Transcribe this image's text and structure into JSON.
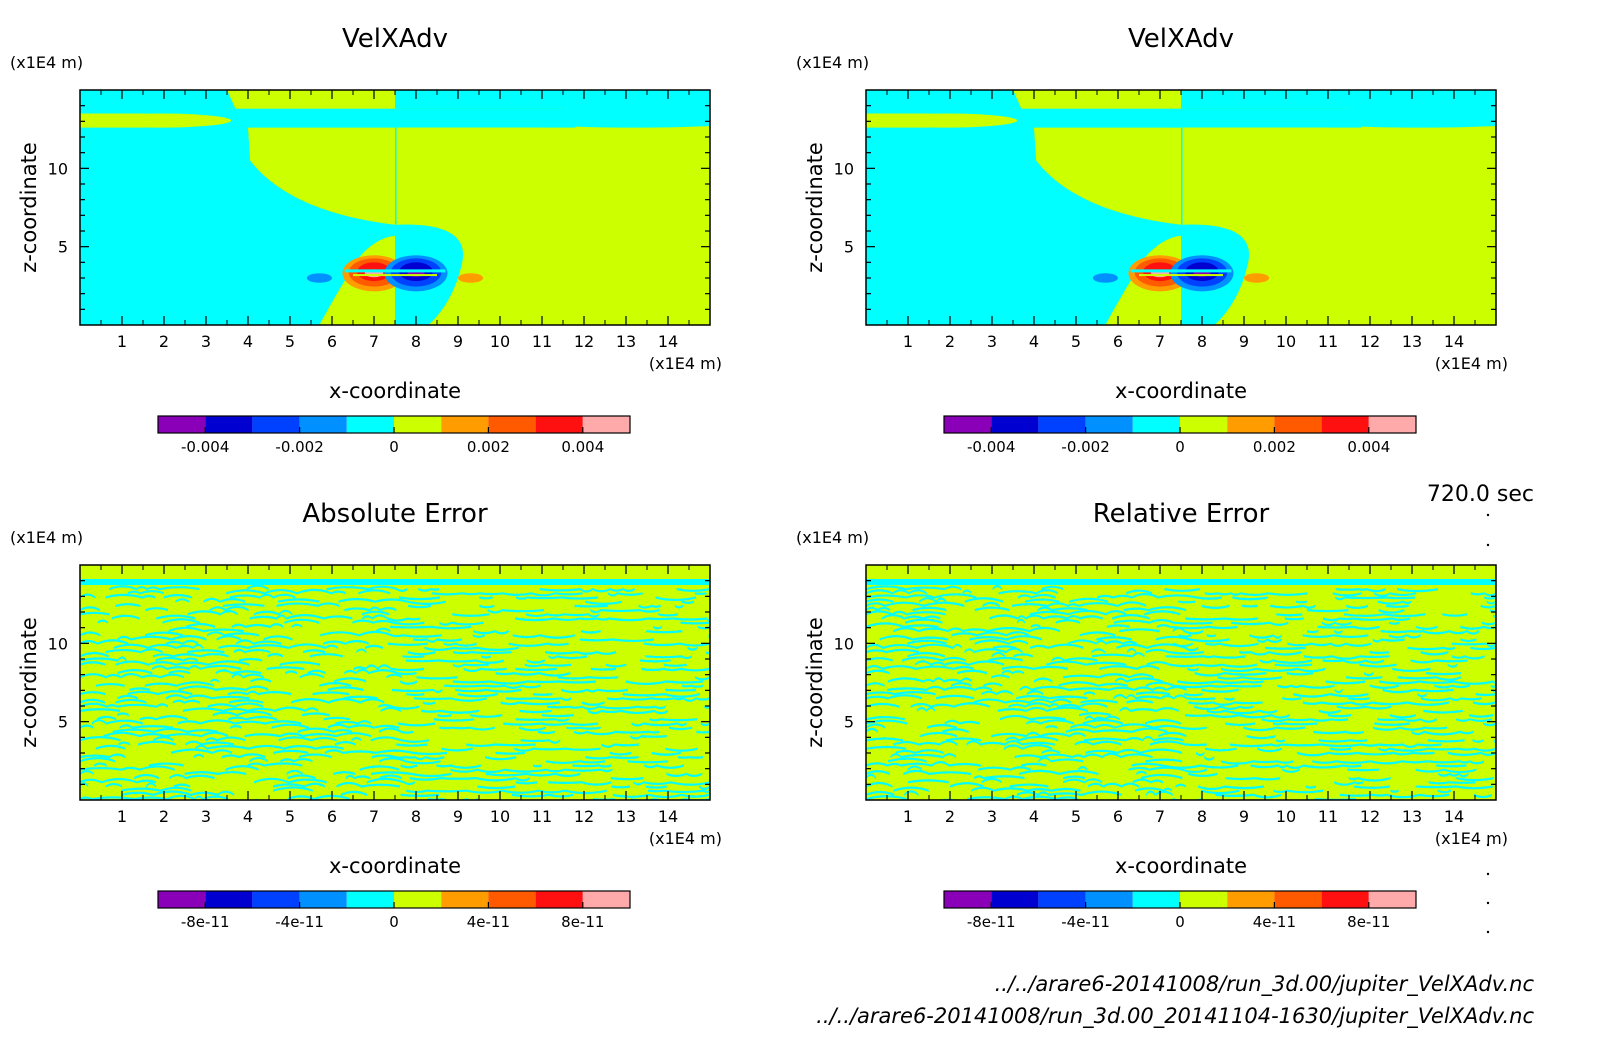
{
  "colors": {
    "fill_cyan": "#00ffff",
    "fill_yellow": "#ccff00",
    "axis": "#000000"
  },
  "colorbar_colors": [
    "#8a00b8",
    "#0000d0",
    "#0040ff",
    "#0090ff",
    "#00ffff",
    "#ccff00",
    "#ff9c00",
    "#ff5a00",
    "#ff1010",
    "#ffaaaa"
  ],
  "time_label": "720.0 sec",
  "footer": {
    "line1": "../../arare6-20141008/run_3d.00/jupiter_VelXAdv.nc",
    "line2": "../../arare6-20141008/run_3d.00_20141104-1630/jupiter_VelXAdv.nc"
  },
  "chart_data": [
    {
      "type": "heatmap",
      "title": "VelXAdv",
      "xlabel": "x-coordinate",
      "ylabel": "z-coordinate",
      "x_unit": "(x1E4 m)",
      "y_unit": "(x1E4 m)",
      "xlim": [
        0,
        15
      ],
      "ylim": [
        0,
        15
      ],
      "x_ticks": [
        "1",
        "2",
        "3",
        "4",
        "5",
        "6",
        "7",
        "8",
        "9",
        "10",
        "11",
        "12",
        "13",
        "14"
      ],
      "y_ticks": [
        "5",
        "10"
      ],
      "pattern": "field",
      "colorbar": {
        "range": [
          -0.005,
          0.005
        ],
        "tick_values": [
          -0.004,
          -0.002,
          0,
          0.002,
          0.004
        ],
        "tick_labels": [
          "-0.004",
          "-0.002",
          "0",
          "0.002",
          "0.004"
        ]
      }
    },
    {
      "type": "heatmap",
      "title": "VelXAdv",
      "xlabel": "x-coordinate",
      "ylabel": "z-coordinate",
      "x_unit": "(x1E4 m)",
      "y_unit": "(x1E4 m)",
      "xlim": [
        0,
        15
      ],
      "ylim": [
        0,
        15
      ],
      "x_ticks": [
        "1",
        "2",
        "3",
        "4",
        "5",
        "6",
        "7",
        "8",
        "9",
        "10",
        "11",
        "12",
        "13",
        "14"
      ],
      "y_ticks": [
        "5",
        "10"
      ],
      "pattern": "field",
      "colorbar": {
        "range": [
          -0.005,
          0.005
        ],
        "tick_values": [
          -0.004,
          -0.002,
          0,
          0.002,
          0.004
        ],
        "tick_labels": [
          "-0.004",
          "-0.002",
          "0",
          "0.002",
          "0.004"
        ]
      }
    },
    {
      "type": "heatmap",
      "title": "Absolute Error",
      "xlabel": "x-coordinate",
      "ylabel": "z-coordinate",
      "x_unit": "(x1E4 m)",
      "y_unit": "(x1E4 m)",
      "xlim": [
        0,
        15
      ],
      "ylim": [
        0,
        15
      ],
      "x_ticks": [
        "1",
        "2",
        "3",
        "4",
        "5",
        "6",
        "7",
        "8",
        "9",
        "10",
        "11",
        "12",
        "13",
        "14"
      ],
      "y_ticks": [
        "5",
        "10"
      ],
      "pattern": "noise",
      "colorbar": {
        "range": [
          -1e-10,
          1e-10
        ],
        "tick_values": [
          -8e-11,
          -4e-11,
          0,
          4e-11,
          8e-11
        ],
        "tick_labels": [
          "-8e-11",
          "-4e-11",
          "0",
          "4e-11",
          "8e-11"
        ]
      }
    },
    {
      "type": "heatmap",
      "title": "Relative Error",
      "xlabel": "x-coordinate",
      "ylabel": "z-coordinate",
      "x_unit": "(x1E4 m)",
      "y_unit": "(x1E4 m)",
      "xlim": [
        0,
        15
      ],
      "ylim": [
        0,
        15
      ],
      "x_ticks": [
        "1",
        "2",
        "3",
        "4",
        "5",
        "6",
        "7",
        "8",
        "9",
        "10",
        "11",
        "12",
        "13",
        "14"
      ],
      "y_ticks": [
        "5",
        "10"
      ],
      "pattern": "noise",
      "colorbar": {
        "range": [
          -1e-10,
          1e-10
        ],
        "tick_values": [
          -8e-11,
          -4e-11,
          0,
          4e-11,
          8e-11
        ],
        "tick_labels": [
          "-8e-11",
          "-4e-11",
          "0",
          "4e-11",
          "8e-11"
        ]
      }
    }
  ]
}
